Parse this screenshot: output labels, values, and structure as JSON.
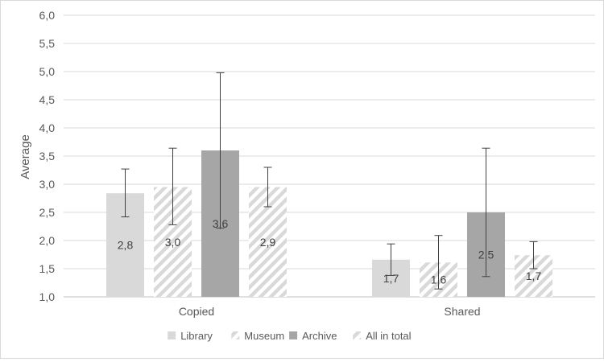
{
  "chart_data": {
    "type": "bar",
    "title": "",
    "xlabel": "",
    "ylabel": "Average",
    "ylim": [
      1.0,
      6.0
    ],
    "yticks": [
      "1,0",
      "1,5",
      "2,0",
      "2,5",
      "3,0",
      "3,5",
      "4,0",
      "4,5",
      "5,0",
      "5,5",
      "6,0"
    ],
    "categories": [
      "Copied",
      "Shared"
    ],
    "grid": true,
    "legend_position": "bottom",
    "series": [
      {
        "name": "Library",
        "pattern": "solid",
        "color": "#d9d9d9",
        "values": [
          2.84,
          1.66
        ],
        "labels": [
          "2,8",
          "1,7"
        ],
        "error_low": [
          2.42,
          1.38
        ],
        "error_high": [
          3.27,
          1.94
        ]
      },
      {
        "name": "Museum",
        "pattern": "diagonal-hatch",
        "color": "#d9d9d9",
        "values": [
          2.95,
          1.61
        ],
        "labels": [
          "3,0",
          "1,6"
        ],
        "error_low": [
          2.28,
          1.14
        ],
        "error_high": [
          3.64,
          2.09
        ]
      },
      {
        "name": "Archive",
        "pattern": "solid",
        "color": "#a6a6a6",
        "values": [
          3.6,
          2.5
        ],
        "labels": [
          "3,6",
          "2,5"
        ],
        "error_low": [
          2.22,
          1.36
        ],
        "error_high": [
          4.98,
          3.64
        ]
      },
      {
        "name": "All in total",
        "pattern": "diagonal-hatch",
        "color": "#d9d9d9",
        "values": [
          2.95,
          1.74
        ],
        "labels": [
          "2,9",
          "1,7"
        ],
        "error_low": [
          2.6,
          1.5
        ],
        "error_high": [
          3.3,
          1.98
        ]
      }
    ]
  }
}
